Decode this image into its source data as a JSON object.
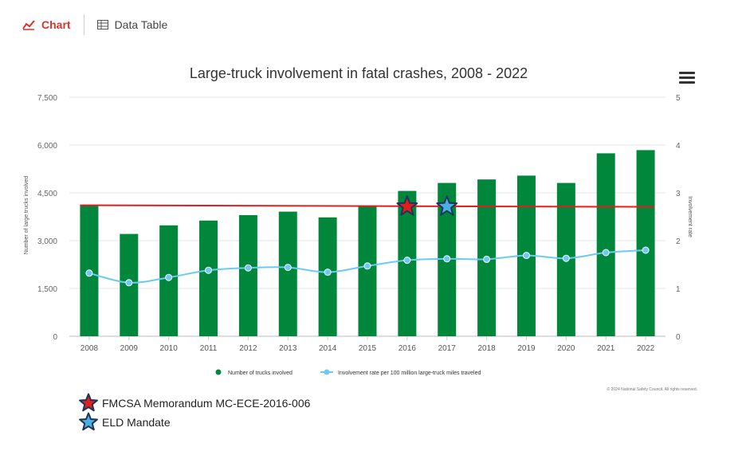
{
  "tabs": {
    "chart_label": "Chart",
    "table_label": "Data Table",
    "chart_icon": "line-chart-icon",
    "table_icon": "table-icon"
  },
  "menu_icon": "hamburger-menu-icon",
  "chart_data": {
    "type": "bar",
    "title": "Large-truck involvement in fatal crashes, 2008 - 2022",
    "categories": [
      "2008",
      "2009",
      "2010",
      "2011",
      "2012",
      "2013",
      "2014",
      "2015",
      "2016",
      "2017",
      "2018",
      "2019",
      "2020",
      "2021",
      "2022"
    ],
    "series": [
      {
        "name": "Number of trucks involved",
        "type": "bar",
        "axis": "left",
        "color": "#00873c",
        "values": [
          4100,
          3210,
          3480,
          3630,
          3800,
          3910,
          3730,
          4090,
          4560,
          4810,
          4920,
          5040,
          4810,
          5740,
          5840
        ]
      },
      {
        "name": "Involvement rate per 100 million large-truck miles traveled",
        "type": "line",
        "axis": "right",
        "color": "#6ccaf0",
        "values": [
          1.32,
          1.12,
          1.23,
          1.38,
          1.43,
          1.44,
          1.34,
          1.47,
          1.59,
          1.62,
          1.61,
          1.69,
          1.63,
          1.75,
          1.8
        ]
      }
    ],
    "ylabel": "Number of large trucks involved",
    "y2label": "Involvement rate",
    "ylim": [
      0,
      7500
    ],
    "yticks": [
      "0",
      "1,500",
      "3,000",
      "4,500",
      "6,000",
      "7,500"
    ],
    "y2lim": [
      0,
      5
    ],
    "y2ticks": [
      "0",
      "1",
      "2",
      "3",
      "4",
      "5"
    ],
    "trendline": {
      "color": "#e01e1e",
      "start": 4110,
      "end": 4060
    },
    "markers": [
      {
        "label": "FMCSA Memorandum MC-ECE-2016-006",
        "category": "2016",
        "value": 4070,
        "color": "#e01e1e",
        "outline": "#1d3557"
      },
      {
        "label": "ELD Mandate",
        "category": "2017",
        "value": 4070,
        "color": "#4ab0e0",
        "outline": "#1d3557"
      }
    ],
    "credit": "© 2024 National Safety Council. All rights reserved.",
    "grid": true,
    "legend_position": "bottom"
  }
}
